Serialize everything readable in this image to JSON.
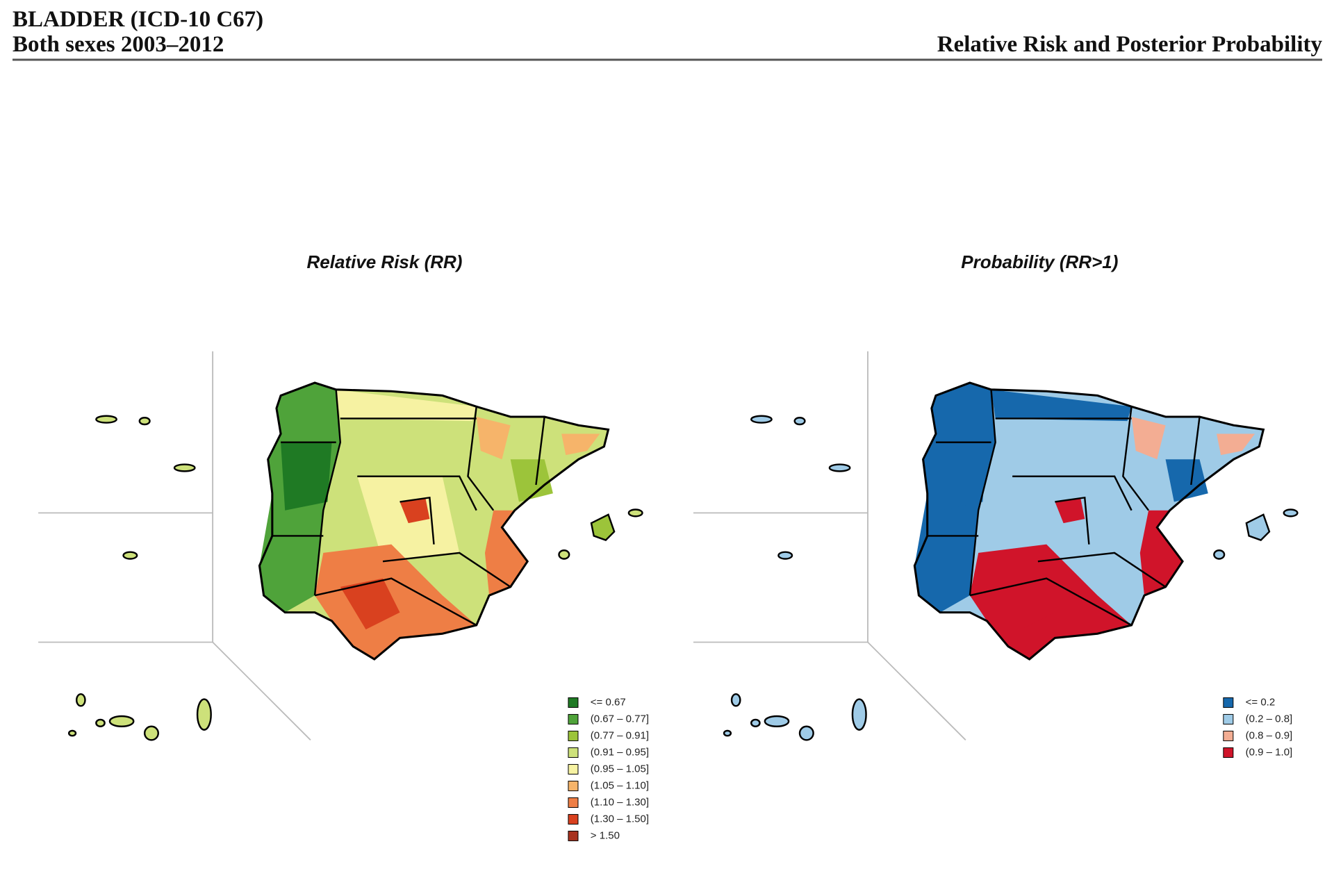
{
  "header": {
    "title": "BLADDER (ICD-10 C67)",
    "subtitle": "Both sexes 2003–2012",
    "right_title": "Relative Risk and Posterior Probability"
  },
  "maps": [
    {
      "title": "Relative Risk (RR)",
      "legend": [
        {
          "label": "<= 0.67",
          "color": "#1f7a24"
        },
        {
          "label": "(0.67 – 0.77]",
          "color": "#4fa33a"
        },
        {
          "label": "(0.77 – 0.91]",
          "color": "#9cc43a"
        },
        {
          "label": "(0.91 – 0.95]",
          "color": "#cde17a"
        },
        {
          "label": "(0.95 – 1.05]",
          "color": "#f6f2a2"
        },
        {
          "label": "(1.05 – 1.10]",
          "color": "#f6b46a"
        },
        {
          "label": "(1.10 – 1.30]",
          "color": "#ee7e45"
        },
        {
          "label": "(1.30 – 1.50]",
          "color": "#d9411f"
        },
        {
          "label": "> 1.50",
          "color": "#a8321f"
        }
      ]
    },
    {
      "title": "Probability (RR>1)",
      "legend": [
        {
          "label": "<= 0.2",
          "color": "#1668ac"
        },
        {
          "label": "(0.2 – 0.8]",
          "color": "#9fcbe7"
        },
        {
          "label": "(0.8 – 0.9]",
          "color": "#f3ad93"
        },
        {
          "label": "(0.9 – 1.0]",
          "color": "#d0142a"
        }
      ]
    }
  ]
}
